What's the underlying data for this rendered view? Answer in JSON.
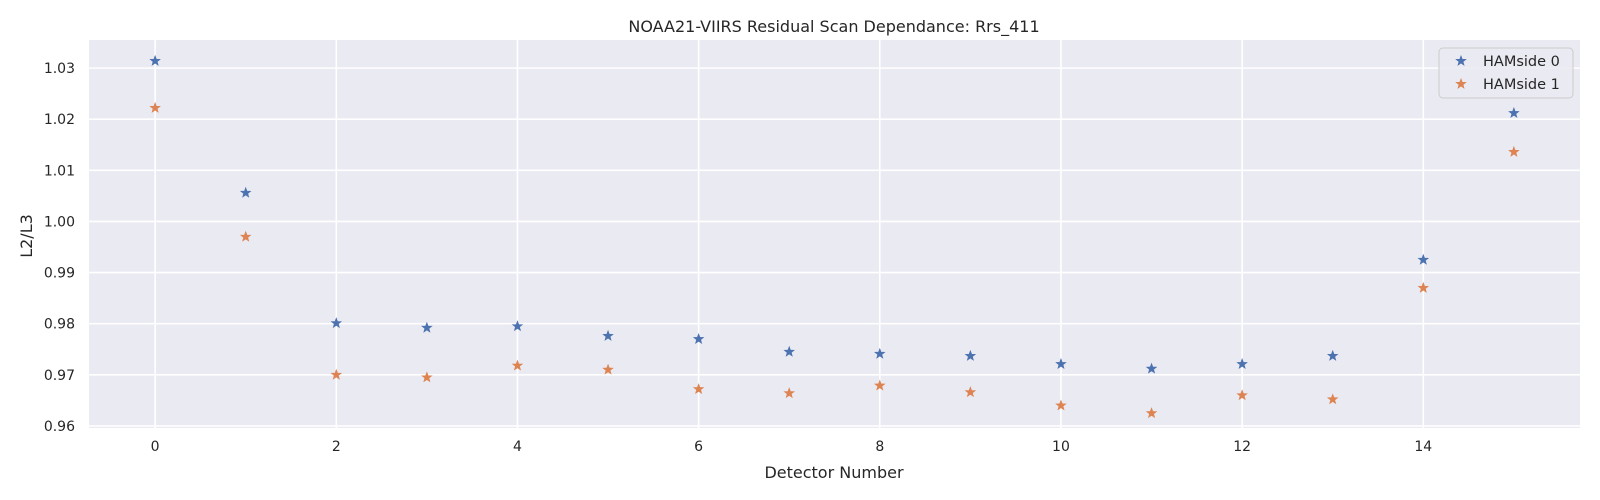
{
  "chart_data": {
    "type": "scatter",
    "title": "NOAA21-VIIRS Residual Scan Dependance: Rrs_411",
    "xlabel": "Detector Number",
    "ylabel": "L2/L3",
    "xlim": [
      -0.73,
      15.73
    ],
    "ylim": [
      0.9596,
      1.0355
    ],
    "xticks": [
      0,
      2,
      4,
      6,
      8,
      10,
      12,
      14
    ],
    "yticks": [
      0.96,
      0.97,
      0.98,
      0.99,
      1.0,
      1.01,
      1.02,
      1.03
    ],
    "ytick_labels": [
      "0.96",
      "0.97",
      "0.98",
      "0.99",
      "1.00",
      "1.01",
      "1.02",
      "1.03"
    ],
    "grid": true,
    "legend_position": "top-right",
    "marker": "star",
    "x": [
      0,
      1,
      2,
      3,
      4,
      5,
      6,
      7,
      8,
      9,
      10,
      11,
      12,
      13,
      14,
      15
    ],
    "series": [
      {
        "name": "HAMside 0",
        "color": "#4c72b0",
        "values": [
          1.0314,
          1.0056,
          0.9801,
          0.9792,
          0.9795,
          0.9776,
          0.977,
          0.9745,
          0.9741,
          0.9737,
          0.9721,
          0.9712,
          0.9721,
          0.9737,
          0.9925,
          1.0212
        ]
      },
      {
        "name": "HAMside 1",
        "color": "#dd8452",
        "values": [
          1.0222,
          0.997,
          0.97,
          0.9695,
          0.9718,
          0.971,
          0.9672,
          0.9664,
          0.9679,
          0.9666,
          0.964,
          0.9625,
          0.966,
          0.9652,
          0.987,
          1.0136
        ]
      }
    ],
    "background_color": "#eaeaf2",
    "grid_color": "#ffffff"
  }
}
